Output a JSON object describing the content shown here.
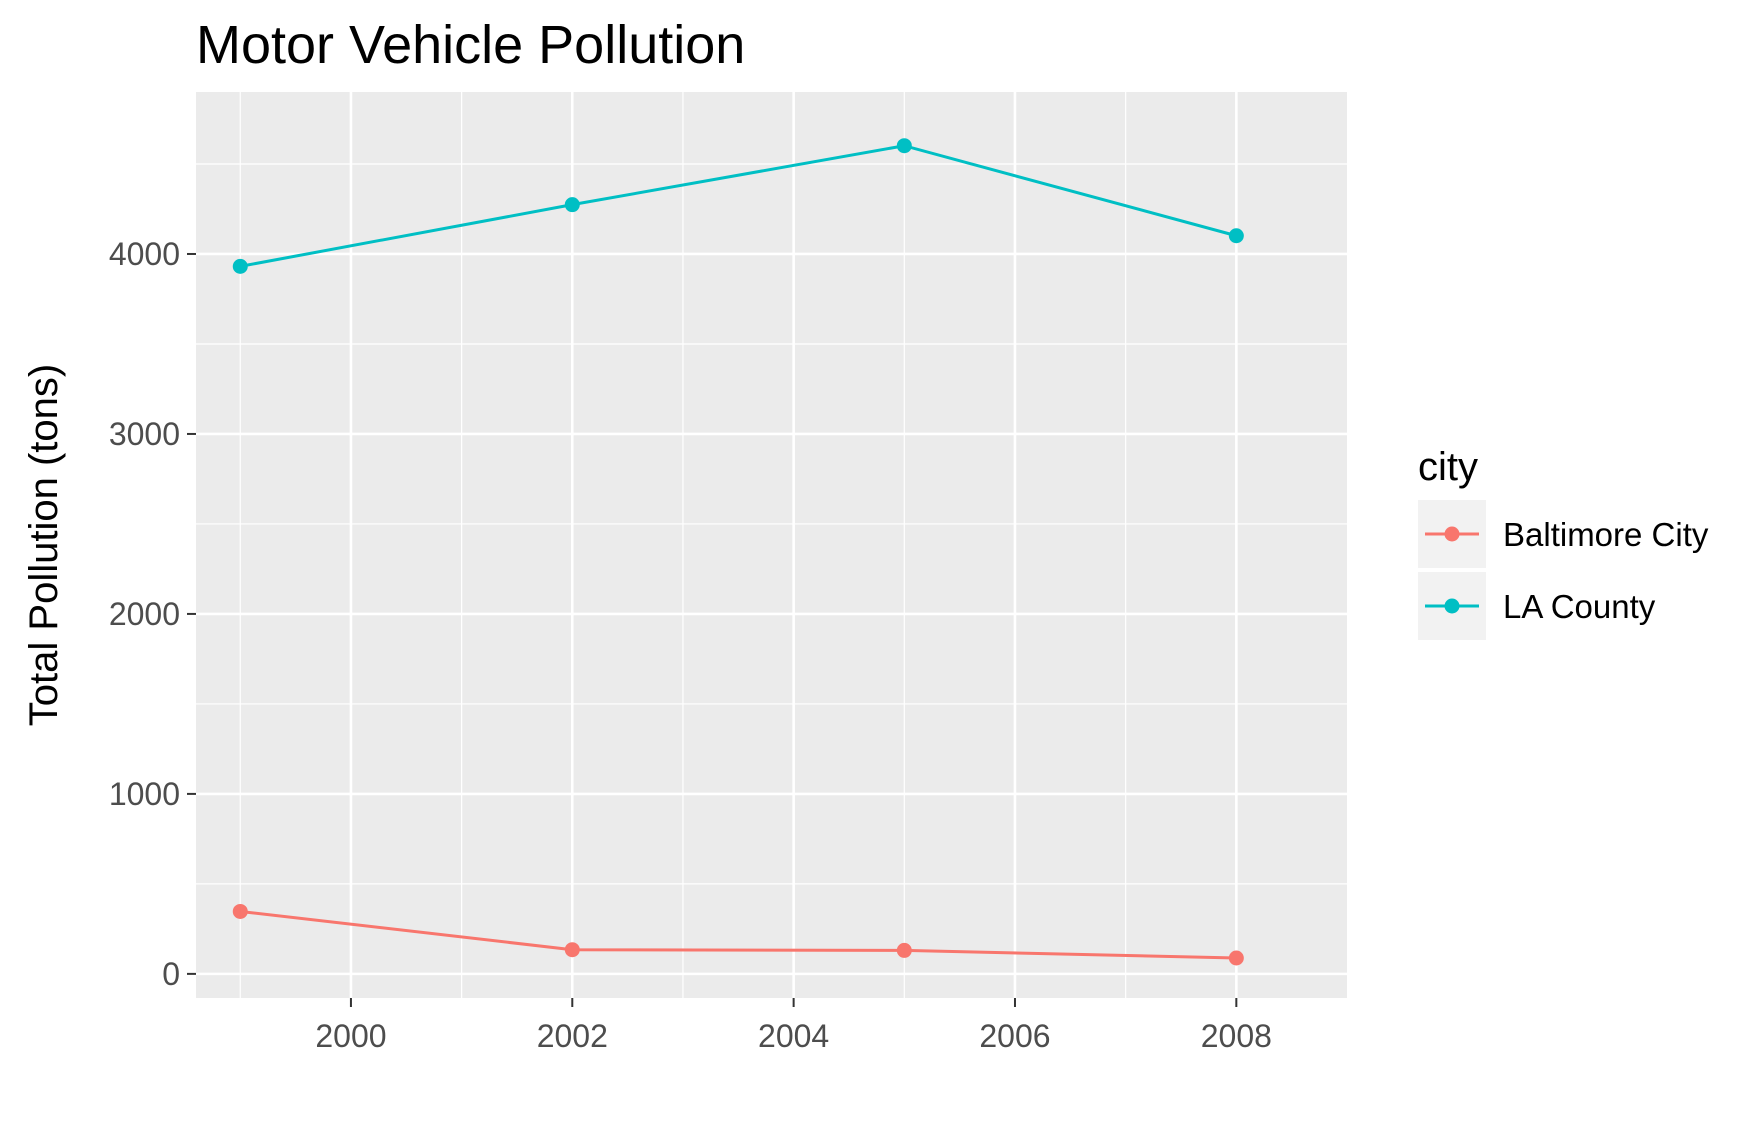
{
  "chart_data": {
    "type": "line",
    "title": "Motor Vehicle Pollution",
    "xlabel": "",
    "ylabel": "Total Pollution (tons)",
    "x": [
      1999,
      2002,
      2005,
      2008
    ],
    "series": [
      {
        "name": "Baltimore City",
        "values": [
          346.82,
          134.31,
          130.43,
          88.28
        ],
        "color": "#F8766D"
      },
      {
        "name": "LA County",
        "values": [
          3931.12,
          4274.03,
          4601.41,
          4101.32
        ],
        "color": "#00BFC4"
      }
    ],
    "xlim": [
      1998.6,
      2009.0
    ],
    "ylim": [
      -134,
      4900
    ],
    "x_ticks": [
      2000,
      2002,
      2004,
      2006,
      2008
    ],
    "y_ticks": [
      0,
      1000,
      2000,
      3000,
      4000
    ],
    "x_tick_labels": [
      "2000",
      "2002",
      "2004",
      "2006",
      "2008"
    ],
    "y_tick_labels": [
      "0",
      "1000",
      "2000",
      "3000",
      "4000"
    ],
    "grid": true,
    "panel_background": "#EBEBEB",
    "legend": {
      "title": "city",
      "position": "right"
    }
  }
}
